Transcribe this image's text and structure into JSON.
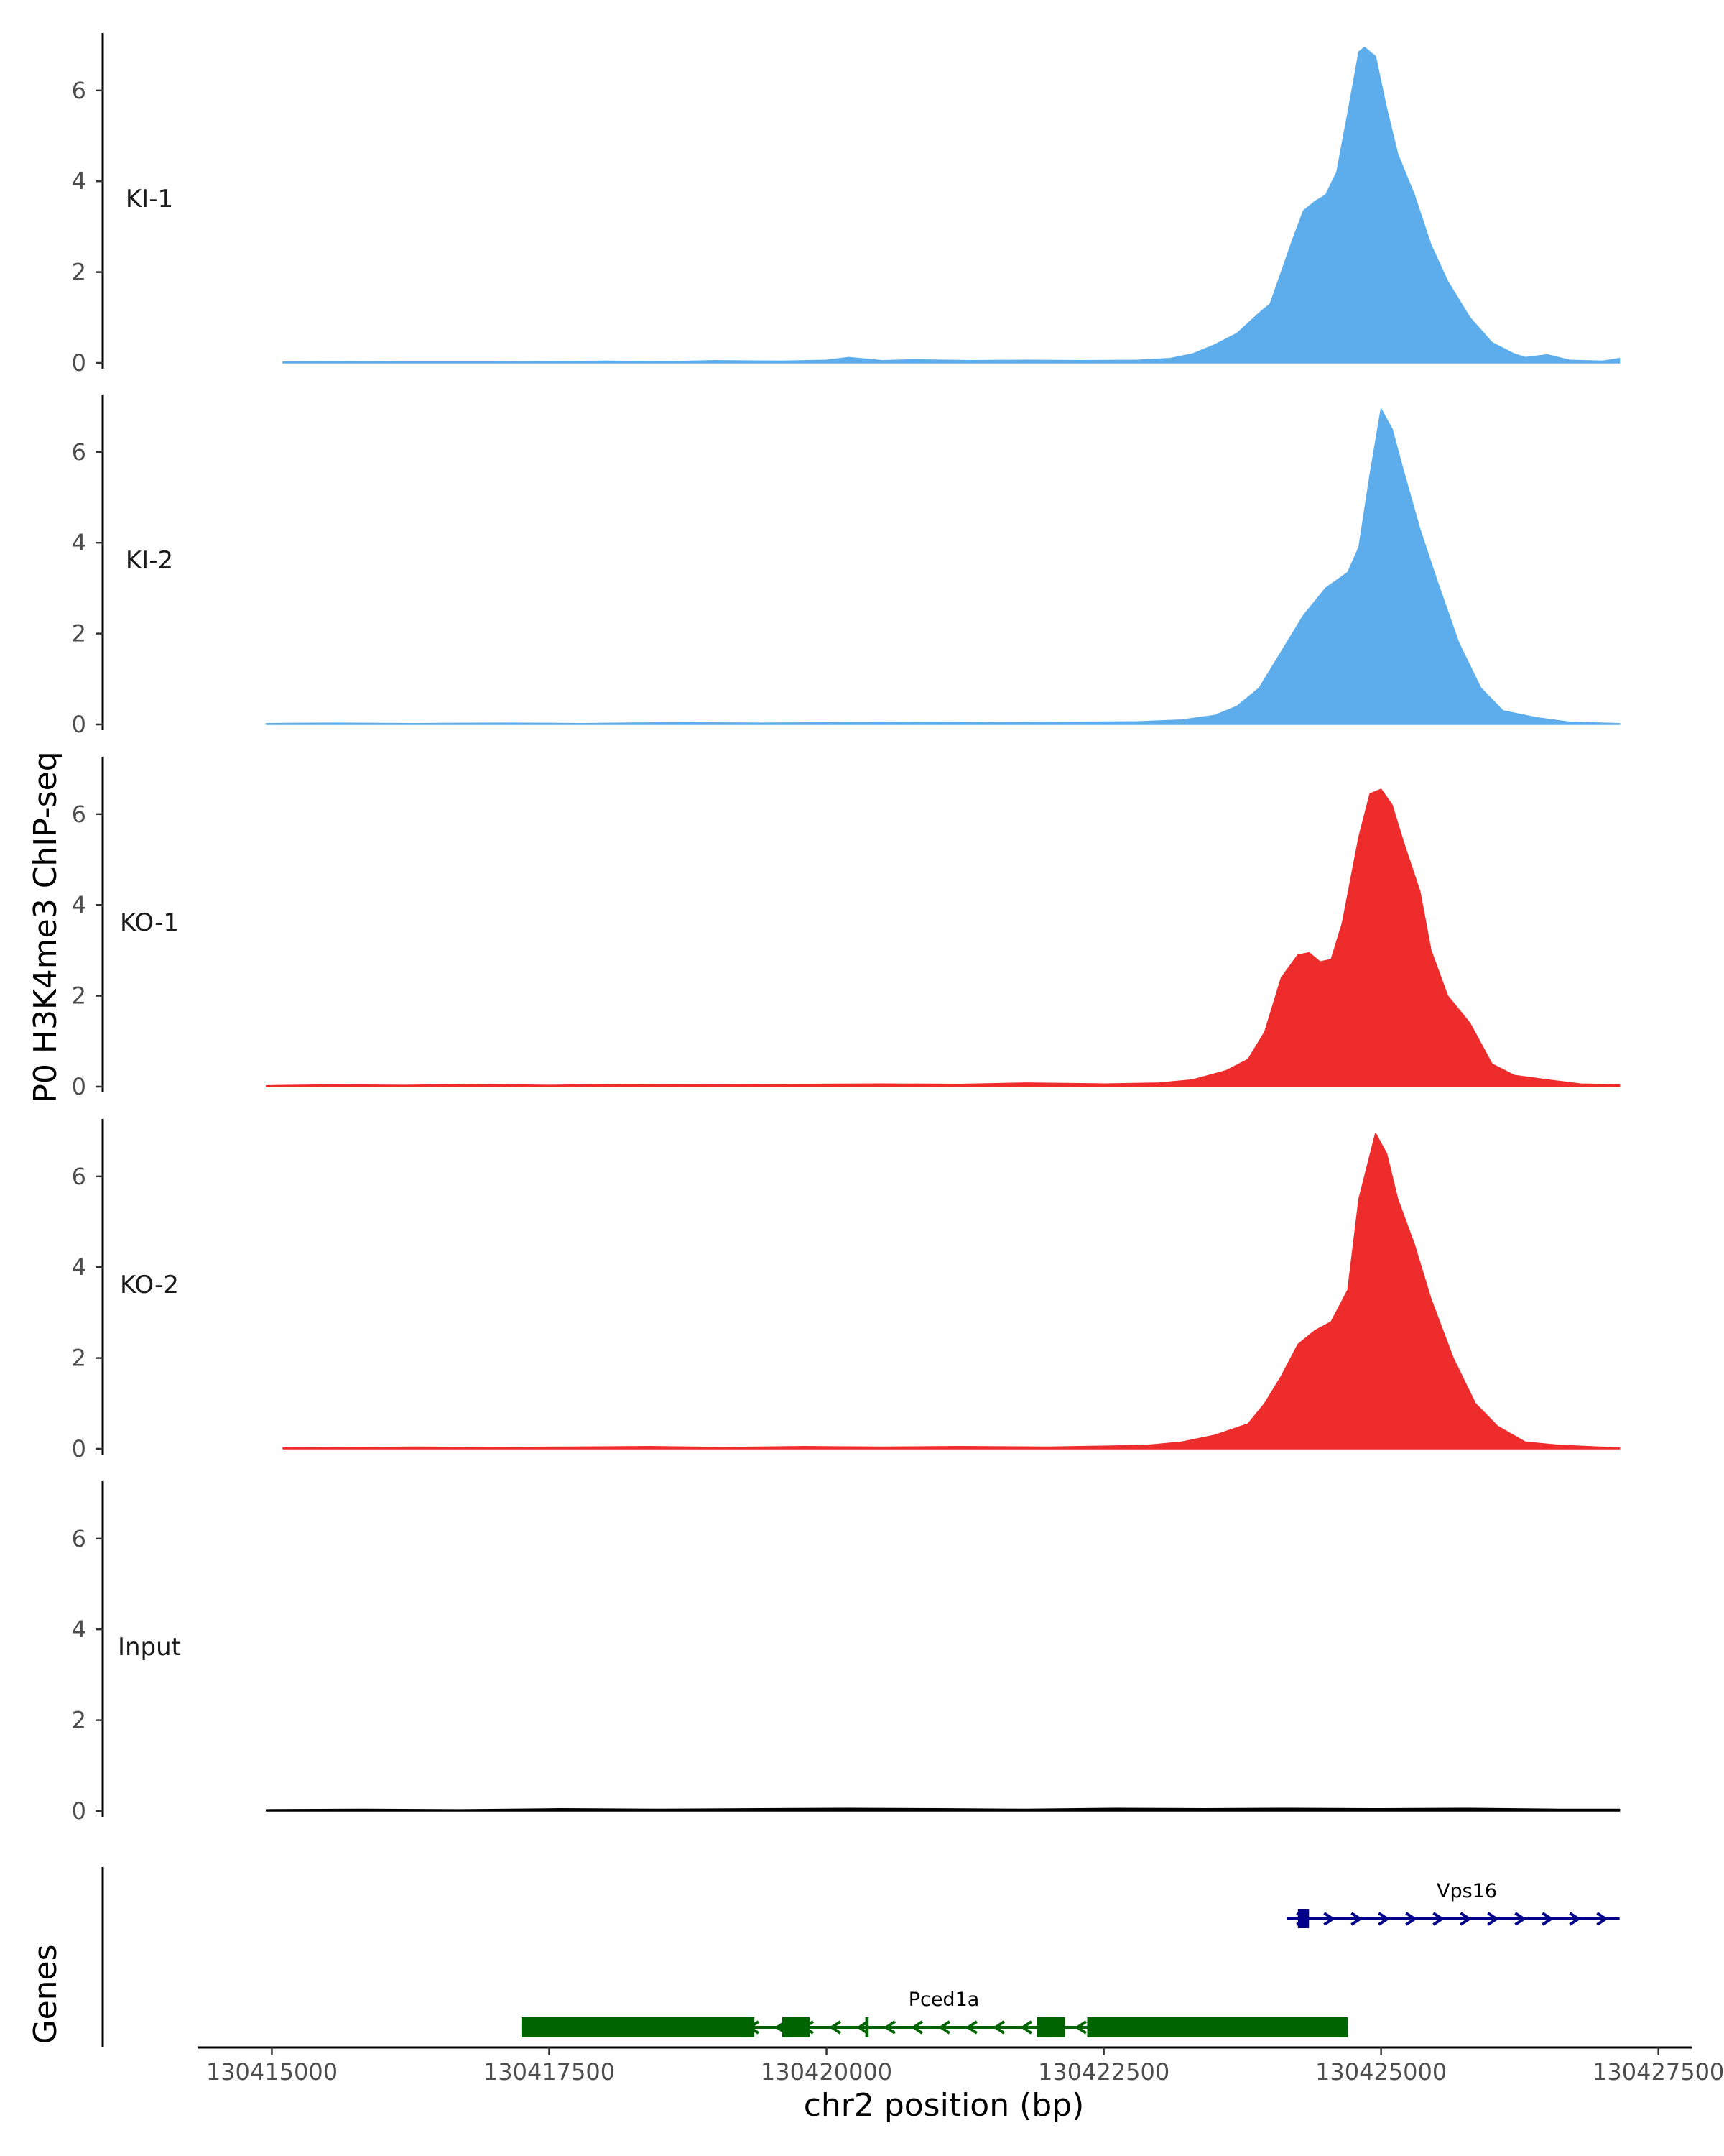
{
  "chart_data": {
    "type": "area",
    "ylabel": "P0 H3K4me3 ChIP-seq",
    "xlabel": "chr2 position (bp)",
    "xlim": [
      130414330,
      130427800
    ],
    "ylim": [
      0,
      7.2
    ],
    "yticks": [
      0,
      2,
      4,
      6
    ],
    "xticks": [
      130415000,
      130417500,
      130420000,
      130422500,
      130425000,
      130427500
    ],
    "xtick_labels": [
      "130415000",
      "130417500",
      "130420000",
      "130422500",
      "130425000",
      "130427500"
    ],
    "ytick_labels": [
      "0",
      "2",
      "4",
      "6"
    ],
    "genes_label": "Genes",
    "colors": {
      "KI": "#5dadec",
      "KO": "#ee2c2c",
      "Input": "#000000",
      "gene_minus": "#006400",
      "gene_plus": "#00008b"
    },
    "tracks": [
      {
        "name": "KI-1",
        "color": "#5dadec",
        "x_start": 130415100,
        "x_end": 130427150,
        "points": [
          [
            130415100,
            0.02
          ],
          [
            130415500,
            0.03
          ],
          [
            130416200,
            0.02
          ],
          [
            130417000,
            0.02
          ],
          [
            130417500,
            0.03
          ],
          [
            130418000,
            0.04
          ],
          [
            130418600,
            0.03
          ],
          [
            130419000,
            0.05
          ],
          [
            130419600,
            0.04
          ],
          [
            130420000,
            0.06
          ],
          [
            130420200,
            0.12
          ],
          [
            130420500,
            0.05
          ],
          [
            130420800,
            0.07
          ],
          [
            130421300,
            0.05
          ],
          [
            130421800,
            0.06
          ],
          [
            130422300,
            0.05
          ],
          [
            130422800,
            0.06
          ],
          [
            130423100,
            0.1
          ],
          [
            130423300,
            0.2
          ],
          [
            130423500,
            0.4
          ],
          [
            130423700,
            0.65
          ],
          [
            130423900,
            1.1
          ],
          [
            130424000,
            1.3
          ],
          [
            130424100,
            2.0
          ],
          [
            130424200,
            2.7
          ],
          [
            130424300,
            3.35
          ],
          [
            130424400,
            3.55
          ],
          [
            130424500,
            3.7
          ],
          [
            130424600,
            4.2
          ],
          [
            130424700,
            5.5
          ],
          [
            130424800,
            6.85
          ],
          [
            130424850,
            6.95
          ],
          [
            130424950,
            6.75
          ],
          [
            130425050,
            5.6
          ],
          [
            130425150,
            4.6
          ],
          [
            130425300,
            3.7
          ],
          [
            130425450,
            2.6
          ],
          [
            130425600,
            1.8
          ],
          [
            130425800,
            1.0
          ],
          [
            130426000,
            0.45
          ],
          [
            130426200,
            0.2
          ],
          [
            130426300,
            0.12
          ],
          [
            130426500,
            0.18
          ],
          [
            130426700,
            0.06
          ],
          [
            130427000,
            0.04
          ],
          [
            130427150,
            0.1
          ]
        ]
      },
      {
        "name": "KI-2",
        "color": "#5dadec",
        "x_start": 130414950,
        "x_end": 130427150,
        "points": [
          [
            130414950,
            0.02
          ],
          [
            130415500,
            0.03
          ],
          [
            130416300,
            0.02
          ],
          [
            130417100,
            0.03
          ],
          [
            130417800,
            0.02
          ],
          [
            130418600,
            0.04
          ],
          [
            130419400,
            0.03
          ],
          [
            130420100,
            0.04
          ],
          [
            130420800,
            0.05
          ],
          [
            130421500,
            0.04
          ],
          [
            130422200,
            0.05
          ],
          [
            130422800,
            0.06
          ],
          [
            130423200,
            0.1
          ],
          [
            130423500,
            0.2
          ],
          [
            130423700,
            0.4
          ],
          [
            130423900,
            0.8
          ],
          [
            130424100,
            1.6
          ],
          [
            130424300,
            2.4
          ],
          [
            130424500,
            3.0
          ],
          [
            130424700,
            3.35
          ],
          [
            130424800,
            3.9
          ],
          [
            130424900,
            5.5
          ],
          [
            130425000,
            6.95
          ],
          [
            130425100,
            6.5
          ],
          [
            130425200,
            5.6
          ],
          [
            130425350,
            4.3
          ],
          [
            130425500,
            3.2
          ],
          [
            130425700,
            1.8
          ],
          [
            130425900,
            0.8
          ],
          [
            130426100,
            0.3
          ],
          [
            130426400,
            0.15
          ],
          [
            130426700,
            0.05
          ],
          [
            130427150,
            0.02
          ]
        ]
      },
      {
        "name": "KO-1",
        "color": "#ee2c2c",
        "x_start": 130414950,
        "x_end": 130427150,
        "points": [
          [
            130414950,
            0.02
          ],
          [
            130415500,
            0.04
          ],
          [
            130416200,
            0.03
          ],
          [
            130416800,
            0.05
          ],
          [
            130417500,
            0.03
          ],
          [
            130418200,
            0.05
          ],
          [
            130419000,
            0.04
          ],
          [
            130419800,
            0.05
          ],
          [
            130420500,
            0.06
          ],
          [
            130421200,
            0.05
          ],
          [
            130421800,
            0.08
          ],
          [
            130422500,
            0.06
          ],
          [
            130423000,
            0.08
          ],
          [
            130423300,
            0.15
          ],
          [
            130423600,
            0.35
          ],
          [
            130423800,
            0.6
          ],
          [
            130423950,
            1.2
          ],
          [
            130424100,
            2.4
          ],
          [
            130424250,
            2.9
          ],
          [
            130424350,
            2.95
          ],
          [
            130424450,
            2.75
          ],
          [
            130424550,
            2.8
          ],
          [
            130424650,
            3.6
          ],
          [
            130424800,
            5.5
          ],
          [
            130424900,
            6.45
          ],
          [
            130425000,
            6.55
          ],
          [
            130425100,
            6.2
          ],
          [
            130425200,
            5.4
          ],
          [
            130425350,
            4.3
          ],
          [
            130425450,
            3.0
          ],
          [
            130425600,
            2.0
          ],
          [
            130425800,
            1.4
          ],
          [
            130426000,
            0.5
          ],
          [
            130426200,
            0.25
          ],
          [
            130426500,
            0.15
          ],
          [
            130426800,
            0.06
          ],
          [
            130427150,
            0.04
          ]
        ]
      },
      {
        "name": "KO-2",
        "color": "#ee2c2c",
        "x_start": 130415100,
        "x_end": 130427150,
        "points": [
          [
            130415100,
            0.02
          ],
          [
            130415700,
            0.03
          ],
          [
            130416300,
            0.04
          ],
          [
            130417000,
            0.03
          ],
          [
            130417700,
            0.04
          ],
          [
            130418400,
            0.05
          ],
          [
            130419100,
            0.03
          ],
          [
            130419800,
            0.05
          ],
          [
            130420500,
            0.04
          ],
          [
            130421200,
            0.05
          ],
          [
            130422000,
            0.04
          ],
          [
            130422500,
            0.06
          ],
          [
            130422900,
            0.08
          ],
          [
            130423200,
            0.15
          ],
          [
            130423500,
            0.3
          ],
          [
            130423800,
            0.55
          ],
          [
            130423950,
            1.0
          ],
          [
            130424100,
            1.6
          ],
          [
            130424250,
            2.3
          ],
          [
            130424400,
            2.6
          ],
          [
            130424550,
            2.8
          ],
          [
            130424700,
            3.5
          ],
          [
            130424800,
            5.5
          ],
          [
            130424950,
            6.95
          ],
          [
            130425050,
            6.5
          ],
          [
            130425150,
            5.5
          ],
          [
            130425300,
            4.5
          ],
          [
            130425450,
            3.3
          ],
          [
            130425650,
            2.0
          ],
          [
            130425850,
            1.0
          ],
          [
            130426050,
            0.5
          ],
          [
            130426300,
            0.15
          ],
          [
            130426600,
            0.08
          ],
          [
            130427150,
            0.02
          ]
        ]
      },
      {
        "name": "Input",
        "color": "#000000",
        "x_start": 130414950,
        "x_end": 130427150,
        "points": [
          [
            130414950,
            0.03
          ],
          [
            130415800,
            0.04
          ],
          [
            130416700,
            0.03
          ],
          [
            130417600,
            0.05
          ],
          [
            130418500,
            0.04
          ],
          [
            130419400,
            0.05
          ],
          [
            130420200,
            0.06
          ],
          [
            130421000,
            0.05
          ],
          [
            130421800,
            0.04
          ],
          [
            130422600,
            0.06
          ],
          [
            130423400,
            0.05
          ],
          [
            130424200,
            0.06
          ],
          [
            130425000,
            0.05
          ],
          [
            130425800,
            0.06
          ],
          [
            130426600,
            0.04
          ],
          [
            130427150,
            0.04
          ]
        ]
      }
    ],
    "genes": [
      {
        "name": "Pced1a",
        "strand": "-",
        "color": "#006400",
        "row": 2,
        "span": [
          130417250,
          130424700
        ],
        "exons": [
          [
            130417250,
            130419350
          ],
          [
            130419600,
            130419850
          ],
          [
            130420350,
            130420380
          ],
          [
            130421900,
            130422150
          ],
          [
            130422350,
            130424700
          ]
        ]
      },
      {
        "name": "Vps16",
        "strand": "+",
        "color": "#00008b",
        "row": 1,
        "span": [
          130424150,
          130427150
        ],
        "exons": [
          [
            130424250,
            130424350
          ]
        ]
      }
    ]
  }
}
